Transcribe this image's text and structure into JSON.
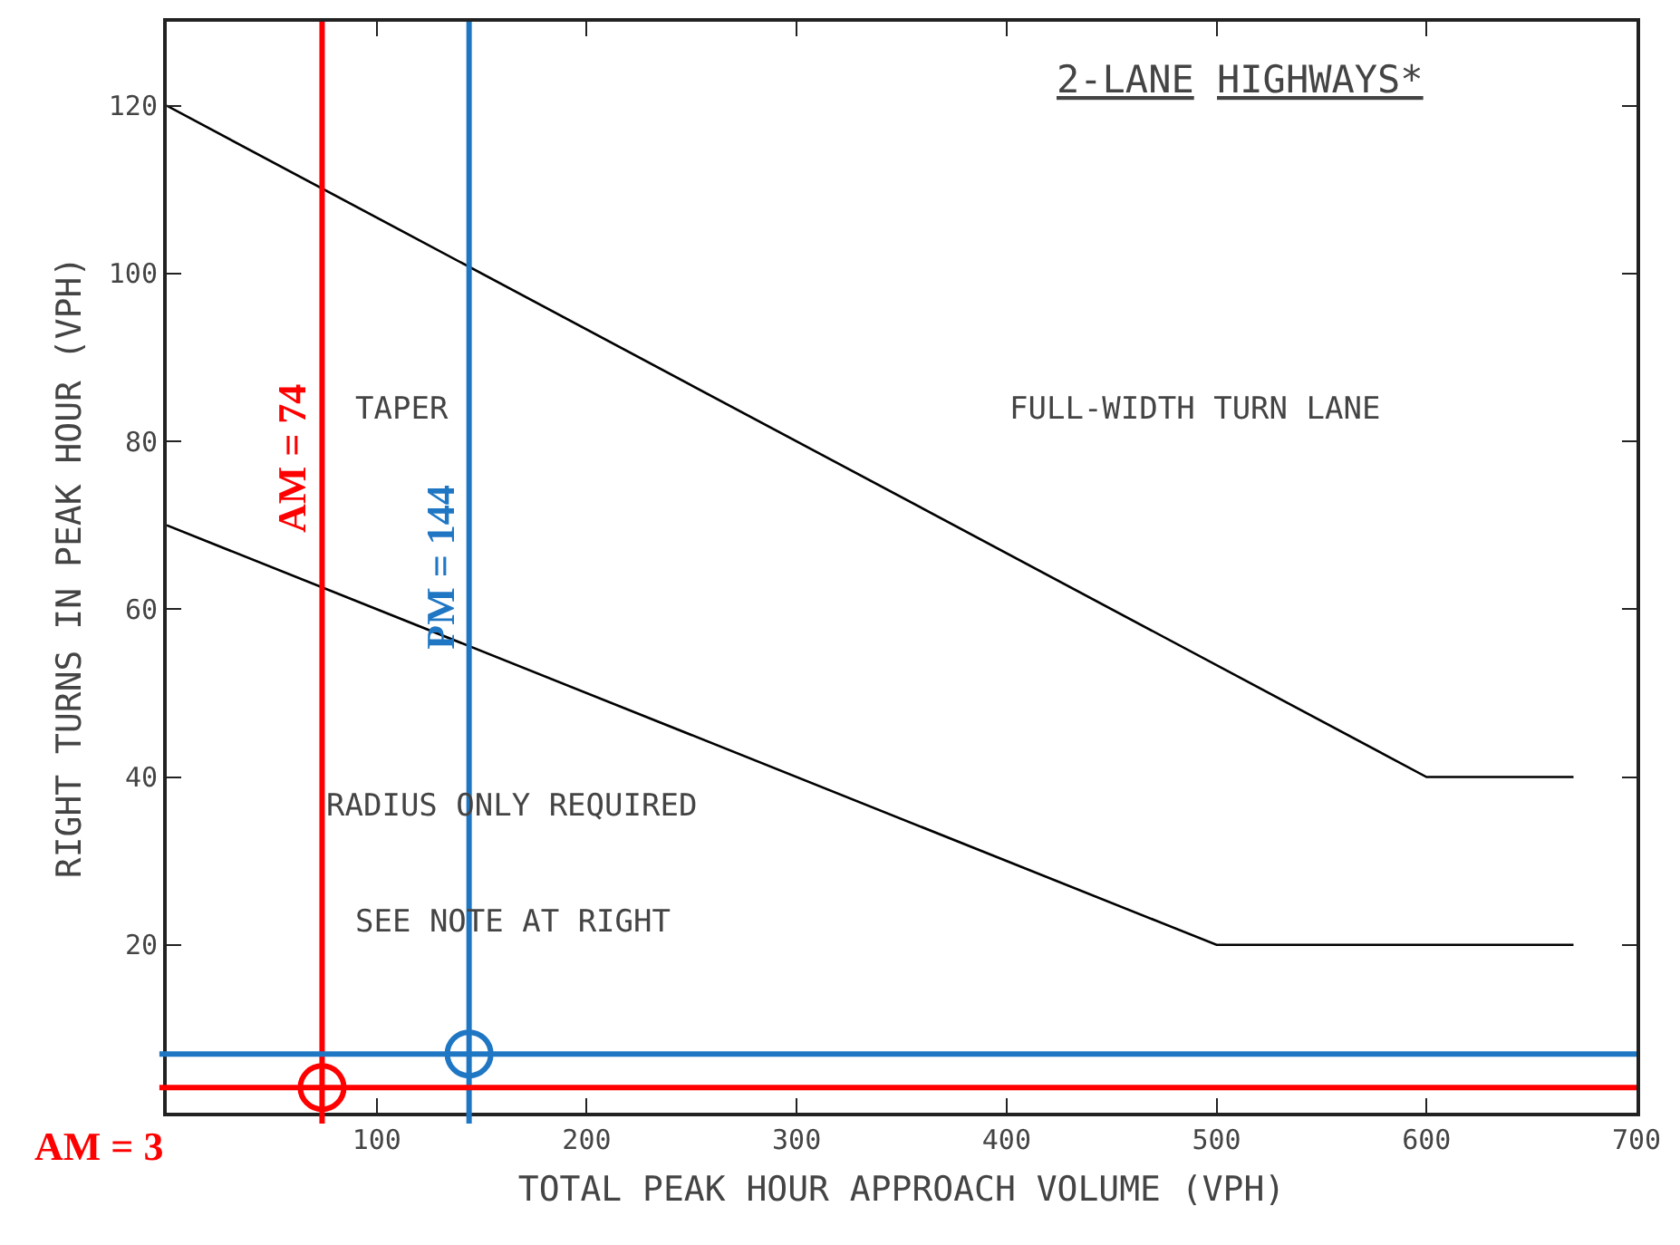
{
  "chart_data": {
    "type": "line",
    "title": "2-LANE HIGHWAYS*",
    "xlabel": "TOTAL PEAK HOUR APPROACH VOLUME (VPH)",
    "ylabel": "RIGHT TURNS IN PEAK HOUR (VPH)",
    "xlim": [
      0,
      700
    ],
    "ylim": [
      0,
      130
    ],
    "xticks": [
      100,
      200,
      300,
      400,
      500,
      600,
      700
    ],
    "yticks": [
      20,
      40,
      60,
      80,
      100,
      120
    ],
    "marker": "none",
    "line_style": "solid",
    "series": [
      {
        "color": "#000000",
        "x": [
          0,
          600,
          670
        ],
        "values": [
          120,
          40,
          40
        ]
      },
      {
        "color": "#000000",
        "x": [
          0,
          500,
          670
        ],
        "values": [
          70,
          20,
          20
        ]
      },
      {
        "type": "scatter",
        "marker": "circle",
        "colors": [
          "#ff0000",
          "#1f77c4"
        ],
        "x": [
          74,
          144
        ],
        "values": [
          3,
          7
        ]
      }
    ],
    "ref_lines": [
      {
        "axis": "x",
        "value": 74,
        "label": "AM = 74",
        "color": "#ff0000"
      },
      {
        "axis": "x",
        "value": 144,
        "label": "PM = 144",
        "color": "#1f77c4"
      },
      {
        "axis": "y",
        "value": 3,
        "label": "AM = 3",
        "color": "#ff0000"
      },
      {
        "axis": "y",
        "value": 7,
        "color": "#1f77c4"
      }
    ],
    "annotations": [
      "TAPER",
      "FULL-WIDTH TURN LANE",
      "RADIUS ONLY REQUIRED",
      "SEE NOTE AT RIGHT"
    ]
  }
}
